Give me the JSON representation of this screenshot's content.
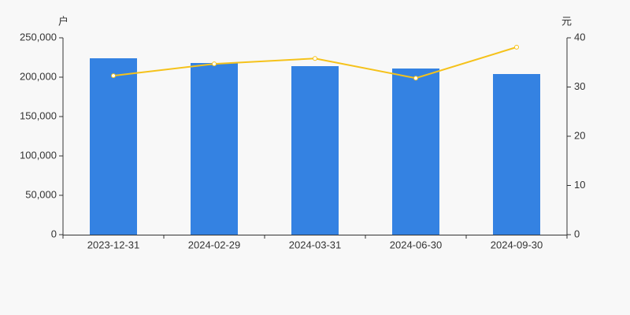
{
  "chart_data": {
    "type": "bar",
    "y_label": "户",
    "y2_label": "元",
    "categories": [
      "2023-12-31",
      "2024-02-29",
      "2024-03-31",
      "2024-06-30",
      "2024-09-30"
    ],
    "series": [
      {
        "type": "bar",
        "color": "#3482e2",
        "values": [
          224000,
          218000,
          214000,
          211000,
          204000
        ]
      },
      {
        "type": "line",
        "axis": "y2",
        "color": "#f5c21b",
        "values": [
          32.3,
          34.7,
          35.8,
          31.8,
          38.1
        ]
      }
    ],
    "ylim": [
      0,
      250000
    ],
    "yticks": [
      0,
      {
        "value": 50000,
        "label": "50,000"
      },
      {
        "value": 100000,
        "label": "100,000"
      },
      {
        "value": 150000,
        "label": "150,000"
      },
      {
        "value": 200000,
        "label": "200,000"
      },
      {
        "value": 250000,
        "label": "250,000"
      }
    ],
    "y2lim": [
      0,
      40
    ],
    "y2ticks": [
      0,
      10,
      20,
      30,
      40
    ],
    "grid": false
  }
}
